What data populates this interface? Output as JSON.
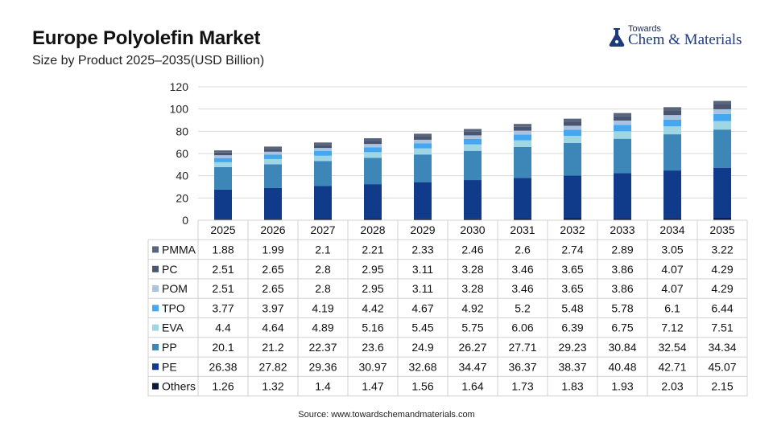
{
  "header": {
    "title": "Europe Polyolefin Market",
    "subtitle": "Size by Product 2025–2035(USD Billion)"
  },
  "logo": {
    "top_text": "Towards",
    "brand_main": "Chem",
    "brand_amp": "&",
    "brand_tail": "Materials"
  },
  "footer": {
    "source": "Source: www.towardschemandmaterials.com"
  },
  "chart_data": {
    "type": "bar",
    "stacked": true,
    "categories": [
      "2025",
      "2026",
      "2027",
      "2028",
      "2029",
      "2030",
      "2031",
      "2032",
      "2033",
      "2034",
      "2035"
    ],
    "ylim": [
      0,
      120
    ],
    "yticks": [
      0,
      20,
      40,
      60,
      80,
      100,
      120
    ],
    "grid": true,
    "legend_placement": "table-left",
    "series": [
      {
        "name": "Others",
        "color": "#0b1a3b",
        "values": [
          "1.26",
          "1.32",
          "1.4",
          "1.47",
          "1.56",
          "1.64",
          "1.73",
          "1.83",
          "1.93",
          "2.03",
          "2.15"
        ]
      },
      {
        "name": "PE",
        "color": "#103a8a",
        "values": [
          "26.38",
          "27.82",
          "29.36",
          "30.97",
          "32.68",
          "34.47",
          "36.37",
          "38.37",
          "40.48",
          "42.71",
          "45.07"
        ]
      },
      {
        "name": "PP",
        "color": "#3d86b8",
        "values": [
          "20.1",
          "21.2",
          "22.37",
          "23.6",
          "24.9",
          "26.27",
          "27.71",
          "29.23",
          "30.84",
          "32.54",
          "34.34"
        ]
      },
      {
        "name": "EVA",
        "color": "#9fd6e4",
        "values": [
          "4.4",
          "4.64",
          "4.89",
          "5.16",
          "5.45",
          "5.75",
          "6.06",
          "6.39",
          "6.75",
          "7.12",
          "7.51"
        ]
      },
      {
        "name": "TPO",
        "color": "#45a7ef",
        "values": [
          "3.77",
          "3.97",
          "4.19",
          "4.42",
          "4.67",
          "4.92",
          "5.2",
          "5.48",
          "5.78",
          "6.1",
          "6.44"
        ]
      },
      {
        "name": "POM",
        "color": "#a9c3e0",
        "values": [
          "2.51",
          "2.65",
          "2.8",
          "2.95",
          "3.11",
          "3.28",
          "3.46",
          "3.65",
          "3.86",
          "4.07",
          "4.29"
        ]
      },
      {
        "name": "PC",
        "color": "#4a5570",
        "values": [
          "2.51",
          "2.65",
          "2.8",
          "2.95",
          "3.11",
          "3.28",
          "3.46",
          "3.65",
          "3.86",
          "4.07",
          "4.29"
        ]
      },
      {
        "name": "PMMA",
        "color": "#59657d",
        "values": [
          "1.88",
          "1.99",
          "2.1",
          "2.21",
          "2.33",
          "2.46",
          "2.6",
          "2.74",
          "2.89",
          "3.05",
          "3.22"
        ]
      }
    ],
    "table_row_order": [
      "PMMA",
      "PC",
      "POM",
      "TPO",
      "EVA",
      "PP",
      "PE",
      "Others"
    ]
  }
}
